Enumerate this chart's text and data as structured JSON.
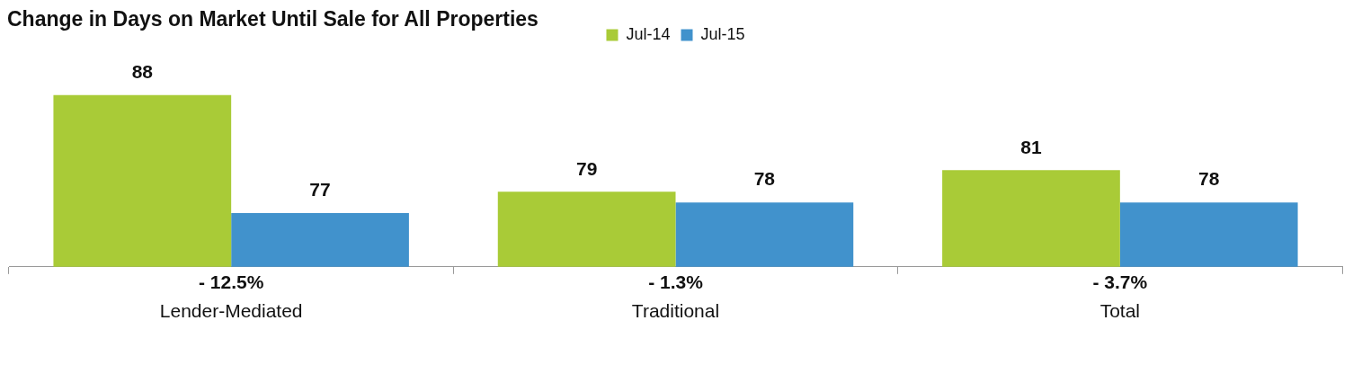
{
  "chart_data": {
    "type": "bar",
    "title": "Change in Days on Market Until Sale for All Properties",
    "categories": [
      "Lender-Mediated",
      "Traditional",
      "Total"
    ],
    "series": [
      {
        "name": "Jul-14",
        "color": "#a9cb37",
        "values": [
          88,
          79,
          81
        ]
      },
      {
        "name": "Jul-15",
        "color": "#4192cc",
        "values": [
          77,
          78,
          78
        ]
      }
    ],
    "tick_labels": "x",
    "data_labels": true,
    "legend": "top",
    "grid": false,
    "annotations": [
      "- 12.5%",
      "- 1.3%",
      "- 3.7%"
    ]
  }
}
